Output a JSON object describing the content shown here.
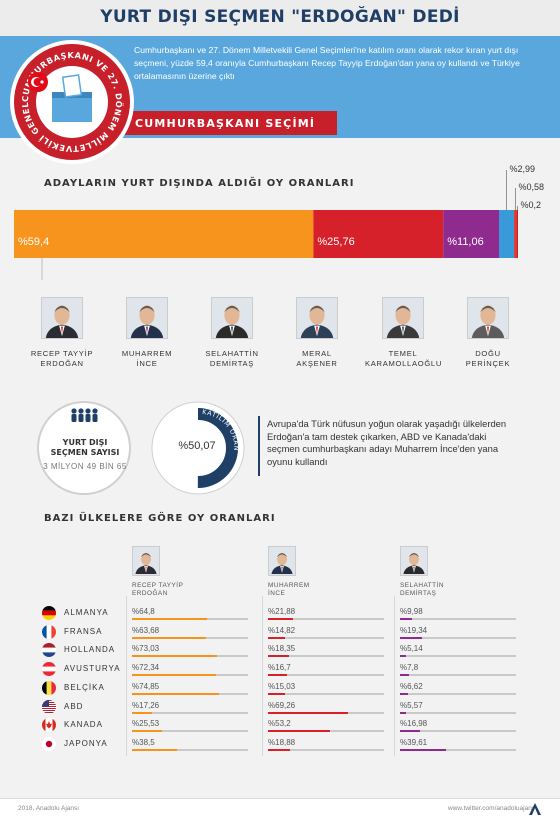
{
  "header": {
    "title": "YURT DIŞI SEÇMEN \"ERDOĞAN\" DEDİ",
    "intro": "Cumhurbaşkanı ve 27. Dönem Milletvekili Genel Seçimleri'ne katılım oranı olarak rekor kıran yurt dışı seçmeni, yüzde 59,4 oranıyla Cumhurbaşkanı Recep Tayyip Erdoğan'dan yana oy kullandı ve Türkiye ortalamasının üzerine çıktı",
    "section": "CUMHURBAŞKANI SEÇİMİ",
    "badge_text": "CUMHURBAŞKANI VE 27. DÖNEM MİLLETVEKİLİ GENEL SEÇİMLERİ"
  },
  "chart_data": {
    "type": "bar",
    "title": "ADAYLARIN YURT DIŞINDA ALDIĞI OY ORANLARI",
    "categories": [
      "RECEP TAYYİP ERDOĞAN",
      "MUHARREM İNCE",
      "SELAHATTİN DEMİRTAŞ",
      "MERAL AKŞENER",
      "TEMEL KARAMOLLAOĞLU",
      "DOĞU PERİNÇEK"
    ],
    "values": [
      59.4,
      25.76,
      11.06,
      2.99,
      0.58,
      0.2
    ],
    "labels": [
      "%59,4",
      "%25,76",
      "%11,06",
      "%2,99",
      "%0,58",
      "%0,2"
    ],
    "colors": [
      "#f7941d",
      "#d7212a",
      "#8f2a8f",
      "#3a9ad9",
      "#e0392c",
      "#c8202b"
    ]
  },
  "candidates": [
    {
      "name": "RECEP TAYYİP ERDOĞAN",
      "line1": "RECEP TAYYİP",
      "line2": "ERDOĞAN"
    },
    {
      "name": "MUHARREM İNCE",
      "line1": "MUHARREM",
      "line2": "İNCE"
    },
    {
      "name": "SELAHATTİN DEMİRTAŞ",
      "line1": "SELAHATTİN",
      "line2": "DEMİRTAŞ"
    },
    {
      "name": "MERAL AKŞENER",
      "line1": "MERAL",
      "line2": "AKŞENER"
    },
    {
      "name": "TEMEL KARAMOLLAOĞLU",
      "line1": "TEMEL",
      "line2": "KARAMOLLAOĞLU"
    },
    {
      "name": "DOĞU PERİNÇEK",
      "line1": "DOĞU",
      "line2": "PERİNÇEK"
    }
  ],
  "voters": {
    "title_line1": "YURT DIŞI",
    "title_line2": "SEÇMEN SAYISI",
    "count": "3 MİLYON 49 BİN 65",
    "turnout_label": "KATILIM ORANI",
    "turnout_value": "%50,07",
    "turnout_fraction": 0.5007
  },
  "note": "Avrupa'da Türk nüfusun yoğun olarak yaşadığı ülkelerden Erdoğan'a tam destek çıkarken, ABD ve Kanada'daki seçmen cumhurbaşkanı adayı Muharrem İnce'den yana oyunu kullandı",
  "country_section": {
    "title": "BAZI ÜLKELERE GÖRE OY ORANLARI",
    "candidates": [
      {
        "line1": "RECEP TAYYİP",
        "line2": "ERDOĞAN",
        "color": "#f7941d"
      },
      {
        "line1": "MUHARREM",
        "line2": "İNCE",
        "color": "#d7212a"
      },
      {
        "line1": "SELAHATTİN",
        "line2": "DEMİRTAŞ",
        "color": "#8f2a8f"
      }
    ],
    "rows": [
      {
        "country": "ALMANYA",
        "flag": "germany",
        "values": [
          64.8,
          21.88,
          9.98
        ],
        "labels": [
          "%64,8",
          "%21,88",
          "%9,98"
        ]
      },
      {
        "country": "FRANSA",
        "flag": "france",
        "values": [
          63.68,
          14.82,
          19.34
        ],
        "labels": [
          "%63,68",
          "%14,82",
          "%19,34"
        ]
      },
      {
        "country": "HOLLANDA",
        "flag": "netherlands",
        "values": [
          73.03,
          18.35,
          5.14
        ],
        "labels": [
          "%73,03",
          "%18,35",
          "%5,14"
        ]
      },
      {
        "country": "AVUSTURYA",
        "flag": "austria",
        "values": [
          72.34,
          16.7,
          7.8
        ],
        "labels": [
          "%72,34",
          "%16,7",
          "%7,8"
        ]
      },
      {
        "country": "BELÇİKA",
        "flag": "belgium",
        "values": [
          74.85,
          15.03,
          6.62
        ],
        "labels": [
          "%74,85",
          "%15,03",
          "%6,62"
        ]
      },
      {
        "country": "ABD",
        "flag": "usa",
        "values": [
          17.26,
          69.26,
          5.57
        ],
        "labels": [
          "%17,26",
          "%69,26",
          "%5,57"
        ]
      },
      {
        "country": "KANADA",
        "flag": "canada",
        "values": [
          25.53,
          53.2,
          16.98
        ],
        "labels": [
          "%25,53",
          "%53,2",
          "%16,98"
        ]
      },
      {
        "country": "JAPONYA",
        "flag": "japan",
        "values": [
          38.5,
          18.88,
          39.61
        ],
        "labels": [
          "%38,5",
          "%18,88",
          "%39,61"
        ]
      }
    ]
  },
  "footer": {
    "copyright": "2018, Anadolu Ajansı",
    "link": "www.twitter.com/anadoluajansi"
  },
  "colors": {
    "header_blue": "#5aa7dd",
    "title_navy": "#1f3f66",
    "banner_red": "#c8202b"
  }
}
